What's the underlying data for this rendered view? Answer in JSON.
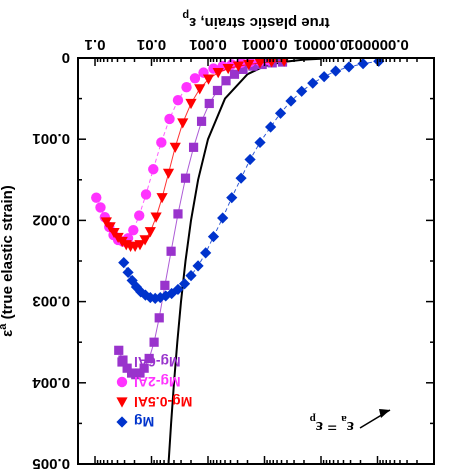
{
  "chart_data": {
    "type": "scatter",
    "title": "",
    "xlabel": "true plastic strain, ε",
    "xlabel_sup": "p",
    "ylabel": "ε",
    "ylabel_sup": "a",
    "ylabel_rest": " (true elastic strain)",
    "x_scale": "log",
    "xlim": [
      1e-07,
      0.2
    ],
    "ylim": [
      0.005,
      0
    ],
    "x_ticks": [
      {
        "value": 1e-06,
        "label": "0.000001"
      },
      {
        "value": 1e-05,
        "label": "0.00001"
      },
      {
        "value": 0.0001,
        "label": "0.0001"
      },
      {
        "value": 0.001,
        "label": "0.001"
      },
      {
        "value": 0.01,
        "label": "0.01"
      },
      {
        "value": 0.1,
        "label": "0.1"
      }
    ],
    "y_ticks": [
      {
        "value": 0,
        "label": "0"
      },
      {
        "value": 0.001,
        "label": "0.001"
      },
      {
        "value": 0.002,
        "label": "0.002"
      },
      {
        "value": 0.003,
        "label": "0.003"
      },
      {
        "value": 0.004,
        "label": "0.004"
      },
      {
        "value": 0.005,
        "label": "0.005"
      }
    ],
    "grid": false,
    "legend_position": "bottom-right",
    "colors": {
      "Mg-6Al": "#9933cc",
      "Mg-2Al": "#ff33ff",
      "Mg-0.5Al": "#ff0000",
      "Mg": "#0033cc",
      "reference": "#000000"
    },
    "series": [
      {
        "name": "Mg-6Al",
        "marker": "square",
        "color": "#9933cc",
        "x": [
          4.8e-05,
          7.3e-05,
          0.00011,
          0.00016,
          0.00024,
          0.00034,
          0.00048,
          0.00068,
          0.00095,
          0.0013,
          0.0018,
          0.0025,
          0.0034,
          0.0045,
          0.0058,
          0.0073,
          0.009,
          0.011,
          0.0135,
          0.016,
          0.019,
          0.0225,
          0.027,
          0.032,
          0.038
        ],
        "y": [
          5e-05,
          6e-05,
          8e-05,
          0.0001,
          0.00014,
          0.0002,
          0.00028,
          0.0004,
          0.00056,
          0.00078,
          0.0011,
          0.00148,
          0.00192,
          0.00238,
          0.0028,
          0.0032,
          0.0035,
          0.0037,
          0.00382,
          0.00388,
          0.0039,
          0.00388,
          0.00382,
          0.00372,
          0.0036
        ]
      },
      {
        "name": "Mg-2Al",
        "marker": "circle",
        "color": "#ff33ff",
        "x": [
          8.2e-05,
          0.00012,
          0.00018,
          0.00026,
          0.00038,
          0.00055,
          0.0008,
          0.0012,
          0.0017,
          0.0024,
          0.0034,
          0.0048,
          0.0067,
          0.0093,
          0.0125,
          0.0165,
          0.021,
          0.026,
          0.032,
          0.039,
          0.047,
          0.056,
          0.067,
          0.08,
          0.095
        ],
        "y": [
          3e-05,
          4e-05,
          5e-05,
          6e-05,
          8e-05,
          0.0001,
          0.00013,
          0.00018,
          0.00025,
          0.00036,
          0.00052,
          0.00075,
          0.00104,
          0.00137,
          0.00168,
          0.00194,
          0.00212,
          0.00222,
          0.00226,
          0.00224,
          0.00218,
          0.00208,
          0.00196,
          0.00184,
          0.00172
        ]
      },
      {
        "name": "Mg-0.5Al",
        "marker": "triangle-down",
        "color": "#ff0000",
        "x": [
          4.5e-05,
          7.5e-05,
          0.00012,
          0.00019,
          0.00029,
          0.00044,
          0.00066,
          0.00098,
          0.0014,
          0.002,
          0.0028,
          0.0038,
          0.005,
          0.0065,
          0.0083,
          0.0105,
          0.013,
          0.016,
          0.0195,
          0.0235,
          0.028,
          0.033,
          0.039,
          0.046,
          0.054,
          0.063
        ],
        "y": [
          4e-05,
          5e-05,
          6e-05,
          8e-05,
          0.0001,
          0.00013,
          0.00018,
          0.00026,
          0.00038,
          0.00056,
          0.0008,
          0.0011,
          0.00142,
          0.00172,
          0.00196,
          0.00214,
          0.00224,
          0.0023,
          0.00232,
          0.00232,
          0.0023,
          0.00226,
          0.00221,
          0.00215,
          0.00208,
          0.00202
        ]
      },
      {
        "name": "Mg",
        "marker": "diamond",
        "color": "#0033cc",
        "x": [
          9.5e-07,
          1.8e-06,
          3.2e-06,
          5.5e-06,
          8.8e-06,
          1.4e-05,
          2.2e-05,
          3.4e-05,
          5.2e-05,
          7.8e-05,
          0.00012,
          0.00018,
          0.00026,
          0.00038,
          0.00055,
          0.0008,
          0.0011,
          0.0015,
          0.002,
          0.0026,
          0.0034,
          0.0044,
          0.0056,
          0.007,
          0.0086,
          0.0105,
          0.0128,
          0.0155,
          0.0185,
          0.022,
          0.026,
          0.031
        ],
        "y": [
          4e-05,
          7e-05,
          0.00011,
          0.00016,
          0.00023,
          0.00031,
          0.00041,
          0.00053,
          0.00068,
          0.00085,
          0.00104,
          0.00125,
          0.00148,
          0.00172,
          0.00197,
          0.0022,
          0.0024,
          0.00256,
          0.00268,
          0.00278,
          0.00285,
          0.0029,
          0.00293,
          0.00295,
          0.00296,
          0.00295,
          0.00292,
          0.00288,
          0.00282,
          0.00274,
          0.00264,
          0.00252
        ]
      }
    ],
    "reference_line": {
      "label": "ε",
      "label_sub_left": "a",
      "label_eq": " = ε",
      "label_sub_right": "p",
      "x": [
        1e-05,
        2e-05,
        5e-05,
        0.0001,
        0.0002,
        0.0005,
        0.001,
        0.0015,
        0.002,
        0.0025,
        0.003,
        0.0035,
        0.004,
        0.0045,
        0.005
      ],
      "y": [
        1e-05,
        2e-05,
        5e-05,
        0.0001,
        0.0002,
        0.0005,
        0.001,
        0.0015,
        0.002,
        0.0025,
        0.003,
        0.0035,
        0.004,
        0.0045,
        0.005
      ]
    },
    "legend": [
      {
        "name": "Mg-6Al",
        "marker": "square",
        "color": "#9933cc"
      },
      {
        "name": "Mg-2Al",
        "marker": "circle",
        "color": "#ff33ff"
      },
      {
        "name": "Mg-0.5Al",
        "marker": "triangle-down",
        "color": "#ff0000"
      },
      {
        "name": "Mg",
        "marker": "diamond",
        "color": "#0033cc"
      }
    ]
  }
}
